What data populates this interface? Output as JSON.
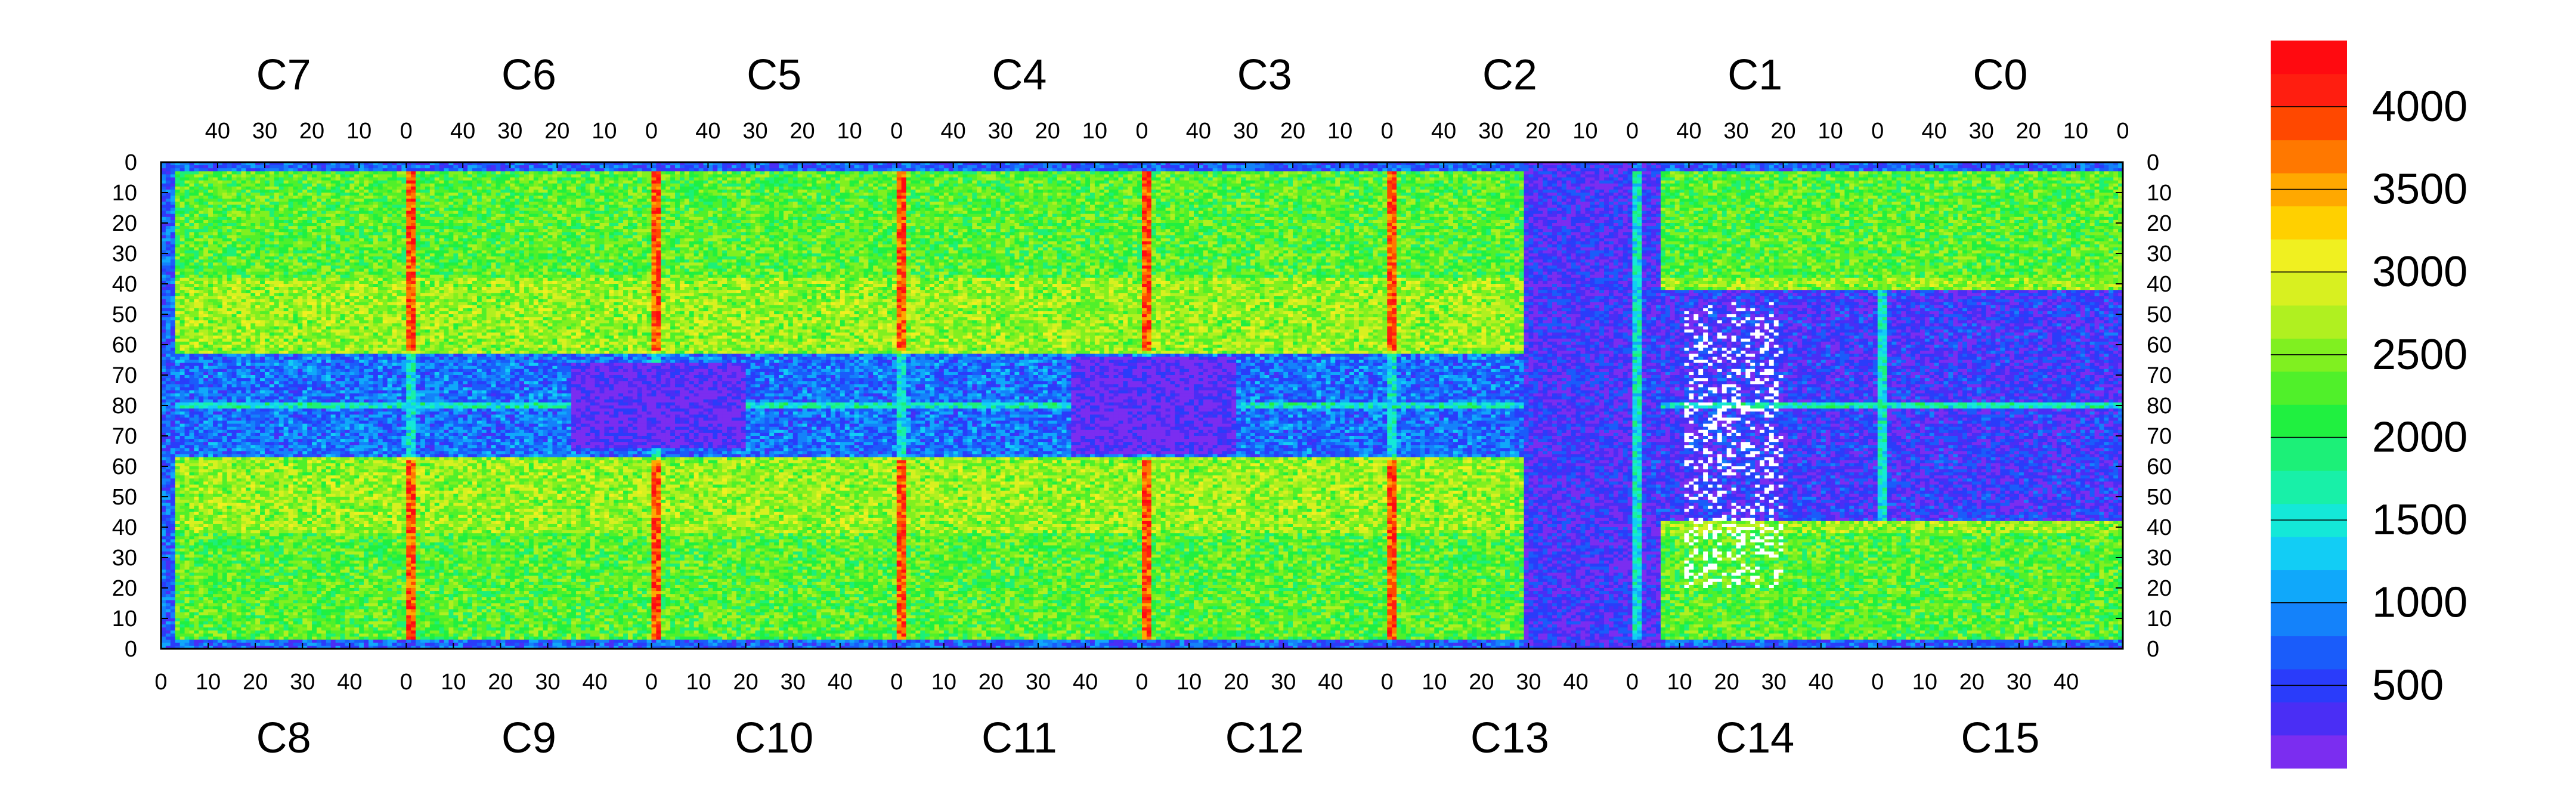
{
  "chart_data": {
    "type": "heatmap",
    "chips_top": [
      "C7",
      "C6",
      "C5",
      "C4",
      "C3",
      "C2",
      "C1",
      "C0"
    ],
    "chips_bottom": [
      "C8",
      "C9",
      "C10",
      "C11",
      "C12",
      "C13",
      "C14",
      "C15"
    ],
    "top_x_ticks": [
      "40",
      "30",
      "20",
      "10",
      "0"
    ],
    "bottom_x_ticks": [
      "0",
      "10",
      "20",
      "30",
      "40"
    ],
    "y_ticks_top_half": [
      "0",
      "10",
      "20",
      "30",
      "40",
      "50",
      "60",
      "70",
      "80"
    ],
    "y_ticks_bottom_half": [
      "70",
      "60",
      "50",
      "40",
      "30",
      "20",
      "10",
      "0"
    ],
    "chip_columns": 52,
    "chip_rows": 80,
    "colorbar": {
      "labels": [
        "500",
        "1000",
        "1500",
        "2000",
        "2500",
        "3000",
        "3500",
        "4000"
      ],
      "min": 0,
      "max": 4400,
      "colors": [
        "#7b2df0",
        "#4a2ef5",
        "#2a3cfa",
        "#1a5cfa",
        "#1482fa",
        "#10a8fa",
        "#12cdf5",
        "#14e8d8",
        "#18f0a8",
        "#1cf078",
        "#20f040",
        "#50f02a",
        "#80f020",
        "#b0f020",
        "#d8f020",
        "#f0f020",
        "#ffd000",
        "#ffa800",
        "#ff7800",
        "#ff4800",
        "#ff1e10",
        "#ff0a10"
      ]
    },
    "regions": {
      "background": 2300,
      "upper_band": 2600,
      "middle_band": 800,
      "edge_columns": 3900,
      "row_80_line": 1600,
      "low_blocks": 150,
      "white_cells": "no data"
    }
  }
}
